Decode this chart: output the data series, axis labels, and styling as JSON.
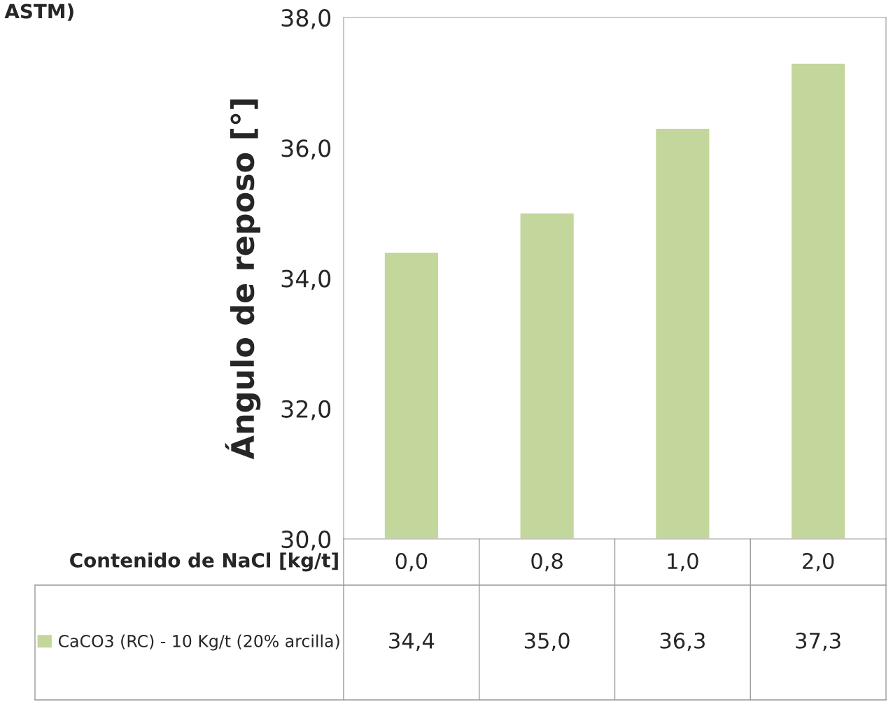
{
  "chart_data": {
    "type": "bar",
    "categories": [
      "0,0",
      "0,8",
      "1,0",
      "2,0"
    ],
    "xlabel": "Contenido de NaCl [kg/t]",
    "ylabel": "Ángulo de reposo [°]",
    "annotations": [
      "ASTM)"
    ],
    "series": [
      {
        "name": "CaCO3 (RC) - 10 Kg/t (20% arcilla)",
        "color": "#c3d69b",
        "values": [
          34.4,
          35.0,
          36.3,
          37.3
        ],
        "value_labels": [
          "34,4",
          "35,0",
          "36,3",
          "37,3"
        ]
      }
    ],
    "ylim": [
      30,
      38
    ],
    "yticks": [
      {
        "value": 30,
        "label": "30,0"
      },
      {
        "value": 32,
        "label": "32,0"
      },
      {
        "value": 34,
        "label": "34,0"
      },
      {
        "value": 36,
        "label": "36,0"
      },
      {
        "value": 38,
        "label": "38,0"
      }
    ],
    "legend": "bottom left",
    "grid": false
  }
}
